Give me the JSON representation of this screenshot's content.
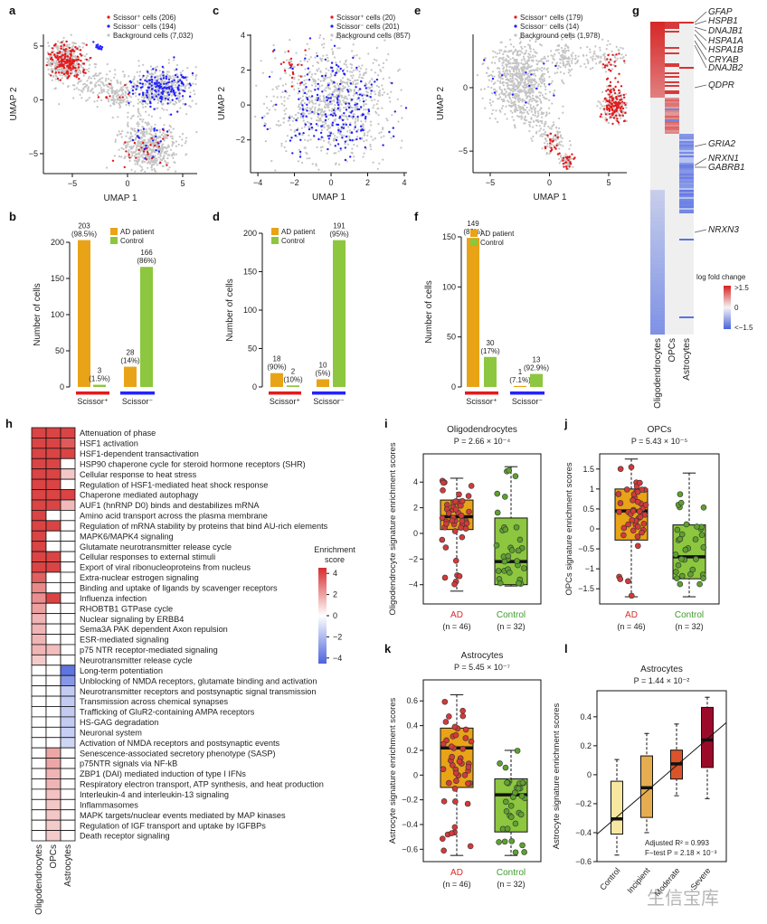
{
  "panel_labels": [
    "a",
    "b",
    "c",
    "d",
    "e",
    "f",
    "g",
    "h",
    "i",
    "j",
    "k",
    "l"
  ],
  "watermark": "生信宝库",
  "chart_data": [
    {
      "id": "a",
      "type": "scatter",
      "xlabel": "UMAP 1",
      "ylabel": "UMAP 2",
      "xticks": [
        -5,
        0,
        5
      ],
      "yticks": [
        -5,
        0,
        5
      ],
      "legend": [
        "Scissor⁺ cells (206)",
        "Scissor⁻ cells (194)",
        "Background cells (7,032)"
      ],
      "counts": {
        "pos": 206,
        "neg": 194,
        "bg": 7032
      }
    },
    {
      "id": "c",
      "type": "scatter",
      "xlabel": "UMAP 1",
      "ylabel": "UMAP 2",
      "xticks": [
        -4,
        -2,
        0,
        2,
        4
      ],
      "yticks": [
        -2,
        0,
        2,
        4
      ],
      "legend": [
        "Scissor⁺ cells (20)",
        "Scissor⁻ cells (201)",
        "Background cells (857)"
      ],
      "counts": {
        "pos": 20,
        "neg": 201,
        "bg": 857
      }
    },
    {
      "id": "e",
      "type": "scatter",
      "xlabel": "UMAP 1",
      "ylabel": "UMAP 2",
      "xticks": [
        -5,
        0,
        5
      ],
      "yticks": [
        -5,
        0
      ],
      "legend": [
        "Scissor⁺ cells (179)",
        "Scissor⁻ cells (14)",
        "Background cells (1,978)"
      ],
      "counts": {
        "pos": 179,
        "neg": 14,
        "bg": 1978
      }
    },
    {
      "id": "b",
      "type": "bar",
      "ylabel": "Number of cells",
      "yticks": [
        0,
        50,
        100,
        150,
        200
      ],
      "ylim": [
        0,
        200
      ],
      "legend": [
        "AD patient",
        "Control"
      ],
      "groups": [
        "Scissor⁺",
        "Scissor⁻"
      ],
      "values": [
        [
          203,
          3
        ],
        [
          28,
          166
        ]
      ],
      "pct": [
        [
          "(98.5%)",
          "(1.5%)"
        ],
        [
          "(14%)",
          "(86%)"
        ]
      ]
    },
    {
      "id": "d",
      "type": "bar",
      "ylabel": "Number of cells",
      "yticks": [
        0,
        50,
        100,
        150,
        200
      ],
      "ylim": [
        0,
        200
      ],
      "legend": [
        "AD patient",
        "Control"
      ],
      "groups": [
        "Scissor⁺",
        "Scissor⁻"
      ],
      "values": [
        [
          18,
          2
        ],
        [
          10,
          191
        ]
      ],
      "pct": [
        [
          "(90%)",
          "(10%)"
        ],
        [
          "(5%)",
          "(95%)"
        ]
      ]
    },
    {
      "id": "f",
      "type": "bar",
      "ylabel": "Number of cells",
      "yticks": [
        0,
        50,
        100,
        150
      ],
      "ylim": [
        0,
        150
      ],
      "legend": [
        "AD patient",
        "Control"
      ],
      "groups": [
        "Scissor⁺",
        "Scissor⁻"
      ],
      "values": [
        [
          149,
          30
        ],
        [
          1,
          13
        ]
      ],
      "pct": [
        [
          "(83%)",
          "(17%)"
        ],
        [
          "(7.1%)",
          "(92.9%)"
        ]
      ]
    },
    {
      "id": "g",
      "type": "heatmap",
      "columns": [
        "Oligodendrocytes",
        "OPCs",
        "Astrocytes"
      ],
      "genes": [
        "GFAP",
        "HSPB1",
        "DNAJB1",
        "HSPA1A",
        "HSPA1B",
        "CRYAB",
        "DNAJB2",
        "QDPR",
        "GRIA2",
        "NRXN1",
        "GABRB1",
        "NRXN3"
      ],
      "legend_title": "log fold change",
      "legend_ticks": [
        ">1.5",
        "0",
        "<−1.5"
      ]
    },
    {
      "id": "h",
      "type": "heatmap",
      "columns": [
        "Oligodendrocytes",
        "OPCs",
        "Astrocytes"
      ],
      "legend_title": [
        "Enrichment",
        "score"
      ],
      "legend_ticks": [
        4,
        2,
        0,
        -2,
        -4
      ],
      "range": [
        -4.5,
        4.5
      ],
      "rows": [
        {
          "name": "Attenuation of phase",
          "values": [
            4,
            4,
            4
          ]
        },
        {
          "name": "HSF1 activation",
          "values": [
            4,
            4,
            3.5
          ]
        },
        {
          "name": "HSF1-dependent transactivation",
          "values": [
            4,
            4,
            4
          ]
        },
        {
          "name": "HSP90 chaperone cycle for steroid hormone receptors (SHR)",
          "values": [
            4,
            4,
            0
          ]
        },
        {
          "name": "Cellular response to heat stress",
          "values": [
            4,
            4,
            1.2
          ]
        },
        {
          "name": "Regulation of HSF1-mediated heat shock response",
          "values": [
            4,
            4,
            0
          ]
        },
        {
          "name": "Chaperone mediated autophagy",
          "values": [
            4,
            4,
            4
          ]
        },
        {
          "name": "AUF1 (hnRNP D0) binds and destabilizes mRNA",
          "values": [
            4,
            4,
            1.5
          ]
        },
        {
          "name": "Amino acid transport across the plasma membrane",
          "values": [
            4,
            0,
            0
          ]
        },
        {
          "name": "Regulation of mRNA stability by proteins that bind AU-rich elements",
          "values": [
            4,
            4,
            0
          ]
        },
        {
          "name": "MAPK6/MAPK4 signaling",
          "values": [
            4,
            0,
            0
          ]
        },
        {
          "name": "Glutamate neurotransmitter release cycle",
          "values": [
            4,
            0,
            0
          ]
        },
        {
          "name": "Cellular responses to external stimuli",
          "values": [
            4,
            4,
            0
          ]
        },
        {
          "name": "Export of viral ribonucleoproteins from nucleus",
          "values": [
            4,
            4,
            0
          ]
        },
        {
          "name": "Extra-nuclear estrogen signaling",
          "values": [
            3.4,
            0,
            0
          ]
        },
        {
          "name": "Binding and uptake of ligands by scavenger receptors",
          "values": [
            2.5,
            0,
            0
          ]
        },
        {
          "name": "Influenza infection",
          "values": [
            2.4,
            4,
            0
          ]
        },
        {
          "name": "RHOBTB1 GTPase cycle",
          "values": [
            2,
            0,
            0
          ]
        },
        {
          "name": "Nuclear signaling by ERBB4",
          "values": [
            1.6,
            0,
            0
          ]
        },
        {
          "name": "Sema3A PAK dependent Axon repulsion",
          "values": [
            1.6,
            0,
            0
          ]
        },
        {
          "name": "ESR-mediated signaling",
          "values": [
            1.6,
            0,
            0
          ]
        },
        {
          "name": "p75 NTR receptor-mediated signaling",
          "values": [
            1.6,
            1.4,
            0
          ]
        },
        {
          "name": "Neurotransmitter release cycle",
          "values": [
            1.1,
            0,
            0
          ]
        },
        {
          "name": "Long-term potentiation",
          "values": [
            0,
            0,
            -4
          ]
        },
        {
          "name": "Unblocking of NMDA receptors, glutamate binding and activation",
          "values": [
            0,
            0,
            -3
          ]
        },
        {
          "name": "Neurotransmitter receptors and postsynaptic signal transmission",
          "values": [
            0,
            0,
            -1.5
          ]
        },
        {
          "name": "Transmission across chemical synapses",
          "values": [
            0,
            0,
            -1.5
          ]
        },
        {
          "name": "Trafficking of GluR2-containing AMPA receptors",
          "values": [
            0,
            0,
            -1.5
          ]
        },
        {
          "name": "HS-GAG degradation",
          "values": [
            0,
            0,
            -1.5
          ]
        },
        {
          "name": "Neuronal system",
          "values": [
            0,
            0,
            -1.4
          ]
        },
        {
          "name": "Activation of NMDA receptors and postsynaptic events",
          "values": [
            0,
            0,
            -1.2
          ]
        },
        {
          "name": "Senescence-associated secretory phenotype (SASP)",
          "values": [
            0,
            1.9,
            0
          ]
        },
        {
          "name": "p75NTR signals via NF-kB",
          "values": [
            0,
            1.9,
            0
          ]
        },
        {
          "name": "ZBP1 (DAI) mediated induction of type I IFNs",
          "values": [
            0,
            1.6,
            0
          ]
        },
        {
          "name": "Respiratory electron transport, ATP synthesis, and heat production",
          "values": [
            0,
            1.6,
            0
          ]
        },
        {
          "name": "Interleukin-4 and interleukin-13 signaling",
          "values": [
            0,
            1.3,
            0
          ]
        },
        {
          "name": "Inflammasomes",
          "values": [
            0,
            1.2,
            0
          ]
        },
        {
          "name": "MAPK targets/nuclear events mediated by MAP kinases",
          "values": [
            0,
            1.2,
            0
          ]
        },
        {
          "name": "Regulation of IGF transport and uptake by IGFBPs",
          "values": [
            0,
            1.1,
            0
          ]
        },
        {
          "name": "Death receptor signaling",
          "values": [
            0,
            1.1,
            0
          ]
        }
      ]
    },
    {
      "id": "i",
      "type": "box",
      "title": "Oligodendrocytes",
      "p": "P = 2.66 × 10⁻⁴",
      "ylabel": "Oligodendrocyte signature enrichment scores",
      "yticks": [
        -4,
        -2,
        0,
        2,
        4
      ],
      "ylim": [
        -5.5,
        6.2
      ],
      "groups": [
        {
          "name": "AD",
          "n": "(n = 46)",
          "q1": 0.3,
          "med": 1.3,
          "q3": 2.6,
          "lo": -4.5,
          "hi": 4.3
        },
        {
          "name": "Control",
          "n": "(n = 32)",
          "q1": -4.0,
          "med": -2.2,
          "q3": 1.2,
          "lo": -4.1,
          "hi": 5.2
        }
      ]
    },
    {
      "id": "j",
      "type": "box",
      "title": "OPCs",
      "p": "P = 5.43 × 10⁻⁵",
      "ylabel": "OPCs signature enrichment scores",
      "yticks": [
        -1.5,
        -1.0,
        -0.5,
        0,
        0.5,
        1.0,
        1.5
      ],
      "ylim": [
        -1.88,
        1.88
      ],
      "groups": [
        {
          "name": "AD",
          "n": "(n = 46)",
          "q1": -0.28,
          "med": 0.45,
          "q3": 1.0,
          "lo": -1.7,
          "hi": 1.75
        },
        {
          "name": "Control",
          "n": "(n = 32)",
          "q1": -1.25,
          "med": -0.7,
          "q3": 0.1,
          "lo": -1.7,
          "hi": 1.4
        }
      ]
    },
    {
      "id": "k",
      "type": "box",
      "title": "Astrocytes",
      "p": "P = 5.45 × 10⁻⁷",
      "ylabel": "Astrocyte signature enrichment scores",
      "yticks": [
        -0.6,
        -0.4,
        -0.2,
        0,
        0.2,
        0.4,
        0.6
      ],
      "ylim": [
        -0.7,
        0.77
      ],
      "groups": [
        {
          "name": "AD",
          "n": "(n = 46)",
          "q1": -0.1,
          "med": 0.22,
          "q3": 0.38,
          "lo": -0.65,
          "hi": 0.65
        },
        {
          "name": "Control",
          "n": "(n = 32)",
          "q1": -0.46,
          "med": -0.16,
          "q3": -0.03,
          "lo": -0.65,
          "hi": 0.2
        }
      ]
    },
    {
      "id": "l",
      "type": "box",
      "title": "Astrocytes",
      "p": "P = 1.44 × 10⁻²",
      "ylabel": "Astrocyte signature enrichment scores",
      "yticks": [
        -0.6,
        -0.4,
        -0.2,
        0,
        0.2,
        0.4
      ],
      "ylim": [
        -0.6,
        0.58
      ],
      "groups": [
        {
          "name": "Control",
          "q1": -0.41,
          "med": -0.305,
          "q3": -0.045,
          "lo": -0.555,
          "hi": 0.105,
          "color": "#f7e7a0"
        },
        {
          "name": "Incipient",
          "q1": -0.295,
          "med": -0.09,
          "q3": 0.13,
          "lo": -0.4,
          "hi": 0.285,
          "color": "#e6ac50"
        },
        {
          "name": "Moderate",
          "q1": -0.03,
          "med": 0.075,
          "q3": 0.17,
          "lo": -0.145,
          "hi": 0.35,
          "color": "#d9542a"
        },
        {
          "name": "Severe",
          "q1": 0.05,
          "med": 0.24,
          "q3": 0.465,
          "lo": -0.165,
          "hi": 0.535,
          "color": "#9c0a2a"
        }
      ],
      "fit": [
        -0.41,
        0.36
      ],
      "annotations": [
        "Adjusted R² = 0.993",
        "F−test P = 2.18 × 10⁻³"
      ]
    }
  ],
  "colors": {
    "pos": "#e31a1c",
    "neg": "#2222ff",
    "bg": "#c4c4c4",
    "ad": "#e8a317",
    "control": "#8dc63f",
    "ad_text": "#d62c2c",
    "control_text": "#3f9a2c",
    "red": "#d62f2f",
    "blue": "#4a63dd"
  }
}
